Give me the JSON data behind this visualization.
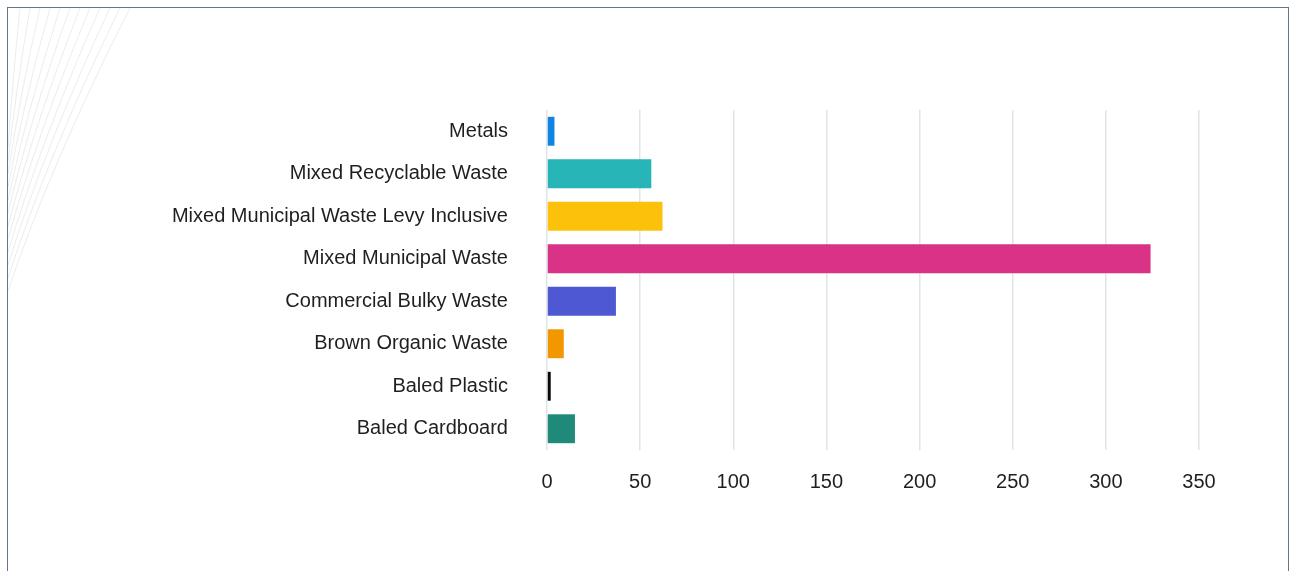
{
  "chart_data": {
    "type": "bar",
    "orientation": "horizontal",
    "categories": [
      "Metals",
      "Mixed Recyclable Waste",
      "Mixed Municipal Waste Levy Inclusive",
      "Mixed Municipal Waste",
      "Commercial Bulky Waste",
      "Brown Organic Waste",
      "Baled Plastic",
      "Baled Cardboard"
    ],
    "values": [
      4,
      56,
      62,
      324,
      37,
      9,
      2,
      15
    ],
    "colors": [
      "#0f84e3",
      "#27b5b8",
      "#fbc10b",
      "#da3287",
      "#4d58d2",
      "#f39700",
      "#0a0a0a",
      "#1f8a7a"
    ],
    "xlim": [
      0,
      350
    ],
    "xticks": [
      0,
      50,
      100,
      150,
      200,
      250,
      300,
      350
    ],
    "grid": "x",
    "legend": false
  }
}
